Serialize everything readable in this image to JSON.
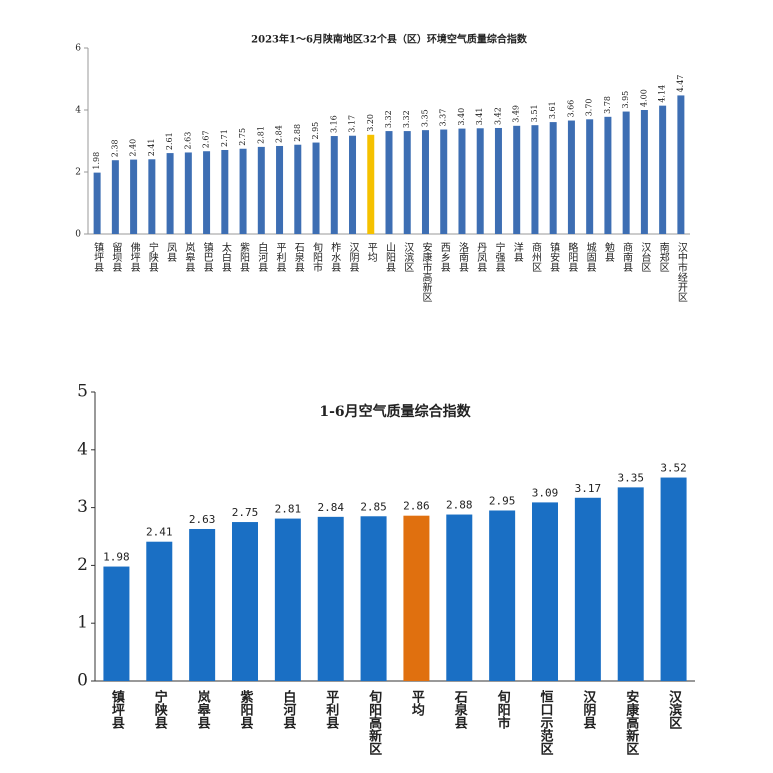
{
  "chart_data": [
    {
      "type": "bar",
      "title": "2023年1～6月陕南地区32个县（区）环境空气质量综合指数",
      "categories": [
        "镇坪县",
        "留坝县",
        "佛坪县",
        "宁陕县",
        "凤县",
        "岚皋县",
        "镇巴县",
        "太白县",
        "紫阳县",
        "白河县",
        "平利县",
        "石泉县",
        "旬阳市",
        "柞水县",
        "汉阴县",
        "平均",
        "山阳县",
        "汉滨区",
        "安康市高新区",
        "西乡县",
        "洛南县",
        "丹凤县",
        "宁强县",
        "洋县",
        "商州区",
        "镇安县",
        "略阳县",
        "城固县",
        "勉县",
        "商南县",
        "汉台区",
        "南郑区",
        "汉中市经开区"
      ],
      "values": [
        1.98,
        2.38,
        2.4,
        2.41,
        2.61,
        2.63,
        2.67,
        2.71,
        2.75,
        2.81,
        2.84,
        2.88,
        2.95,
        3.16,
        3.17,
        3.2,
        3.32,
        3.32,
        3.35,
        3.37,
        3.4,
        3.41,
        3.42,
        3.49,
        3.51,
        3.61,
        3.66,
        3.7,
        3.78,
        3.95,
        4.0,
        4.14,
        4.47
      ],
      "value_labels": [
        "1.98",
        "2.38",
        "2.40",
        "2.41",
        "2.61",
        "2.63",
        "2.67",
        "2.71",
        "2.75",
        "2.81",
        "2.84",
        "2.88",
        "2.95",
        "3.16",
        "3.17",
        "3.20",
        "3.32",
        "3.32",
        "3.35",
        "3.37",
        "3.40",
        "3.41",
        "3.42",
        "3.49",
        "3.51",
        "3.61",
        "3.66",
        "3.70",
        "3.78",
        "3.95",
        "4.00",
        "4.14",
        "4.47"
      ],
      "colors": [
        "#3d6eb3",
        "#3d6eb3",
        "#3d6eb3",
        "#3d6eb3",
        "#3d6eb3",
        "#3d6eb3",
        "#3d6eb3",
        "#3d6eb3",
        "#3d6eb3",
        "#3d6eb3",
        "#3d6eb3",
        "#3d6eb3",
        "#3d6eb3",
        "#3d6eb3",
        "#3d6eb3",
        "#f5c100",
        "#3d6eb3",
        "#3d6eb3",
        "#3d6eb3",
        "#3d6eb3",
        "#3d6eb3",
        "#3d6eb3",
        "#3d6eb3",
        "#3d6eb3",
        "#3d6eb3",
        "#3d6eb3",
        "#3d6eb3",
        "#3d6eb3",
        "#3d6eb3",
        "#3d6eb3",
        "#3d6eb3",
        "#3d6eb3",
        "#3d6eb3"
      ],
      "ylim": [
        0,
        6
      ],
      "yticks": [
        0,
        2,
        4,
        6
      ]
    },
    {
      "type": "bar",
      "title": "1-6月空气质量综合指数",
      "categories": [
        "镇坪县",
        "宁陕县",
        "岚皋县",
        "紫阳县",
        "白河县",
        "平利县",
        "旬阳高新区",
        "平均",
        "石泉县",
        "旬阳市",
        "恒口示范区",
        "汉阴县",
        "安康高新区",
        "汉滨区"
      ],
      "values": [
        1.98,
        2.41,
        2.63,
        2.75,
        2.81,
        2.84,
        2.85,
        2.86,
        2.88,
        2.95,
        3.09,
        3.17,
        3.35,
        3.52
      ],
      "colors": [
        "#1a6fc4",
        "#1a6fc4",
        "#1a6fc4",
        "#1a6fc4",
        "#1a6fc4",
        "#1a6fc4",
        "#1a6fc4",
        "#e0700f",
        "#1a6fc4",
        "#1a6fc4",
        "#1a6fc4",
        "#1a6fc4",
        "#1a6fc4",
        "#1a6fc4"
      ],
      "ylim": [
        0,
        5
      ],
      "yticks": [
        0,
        1,
        2,
        3,
        4,
        5
      ]
    }
  ]
}
